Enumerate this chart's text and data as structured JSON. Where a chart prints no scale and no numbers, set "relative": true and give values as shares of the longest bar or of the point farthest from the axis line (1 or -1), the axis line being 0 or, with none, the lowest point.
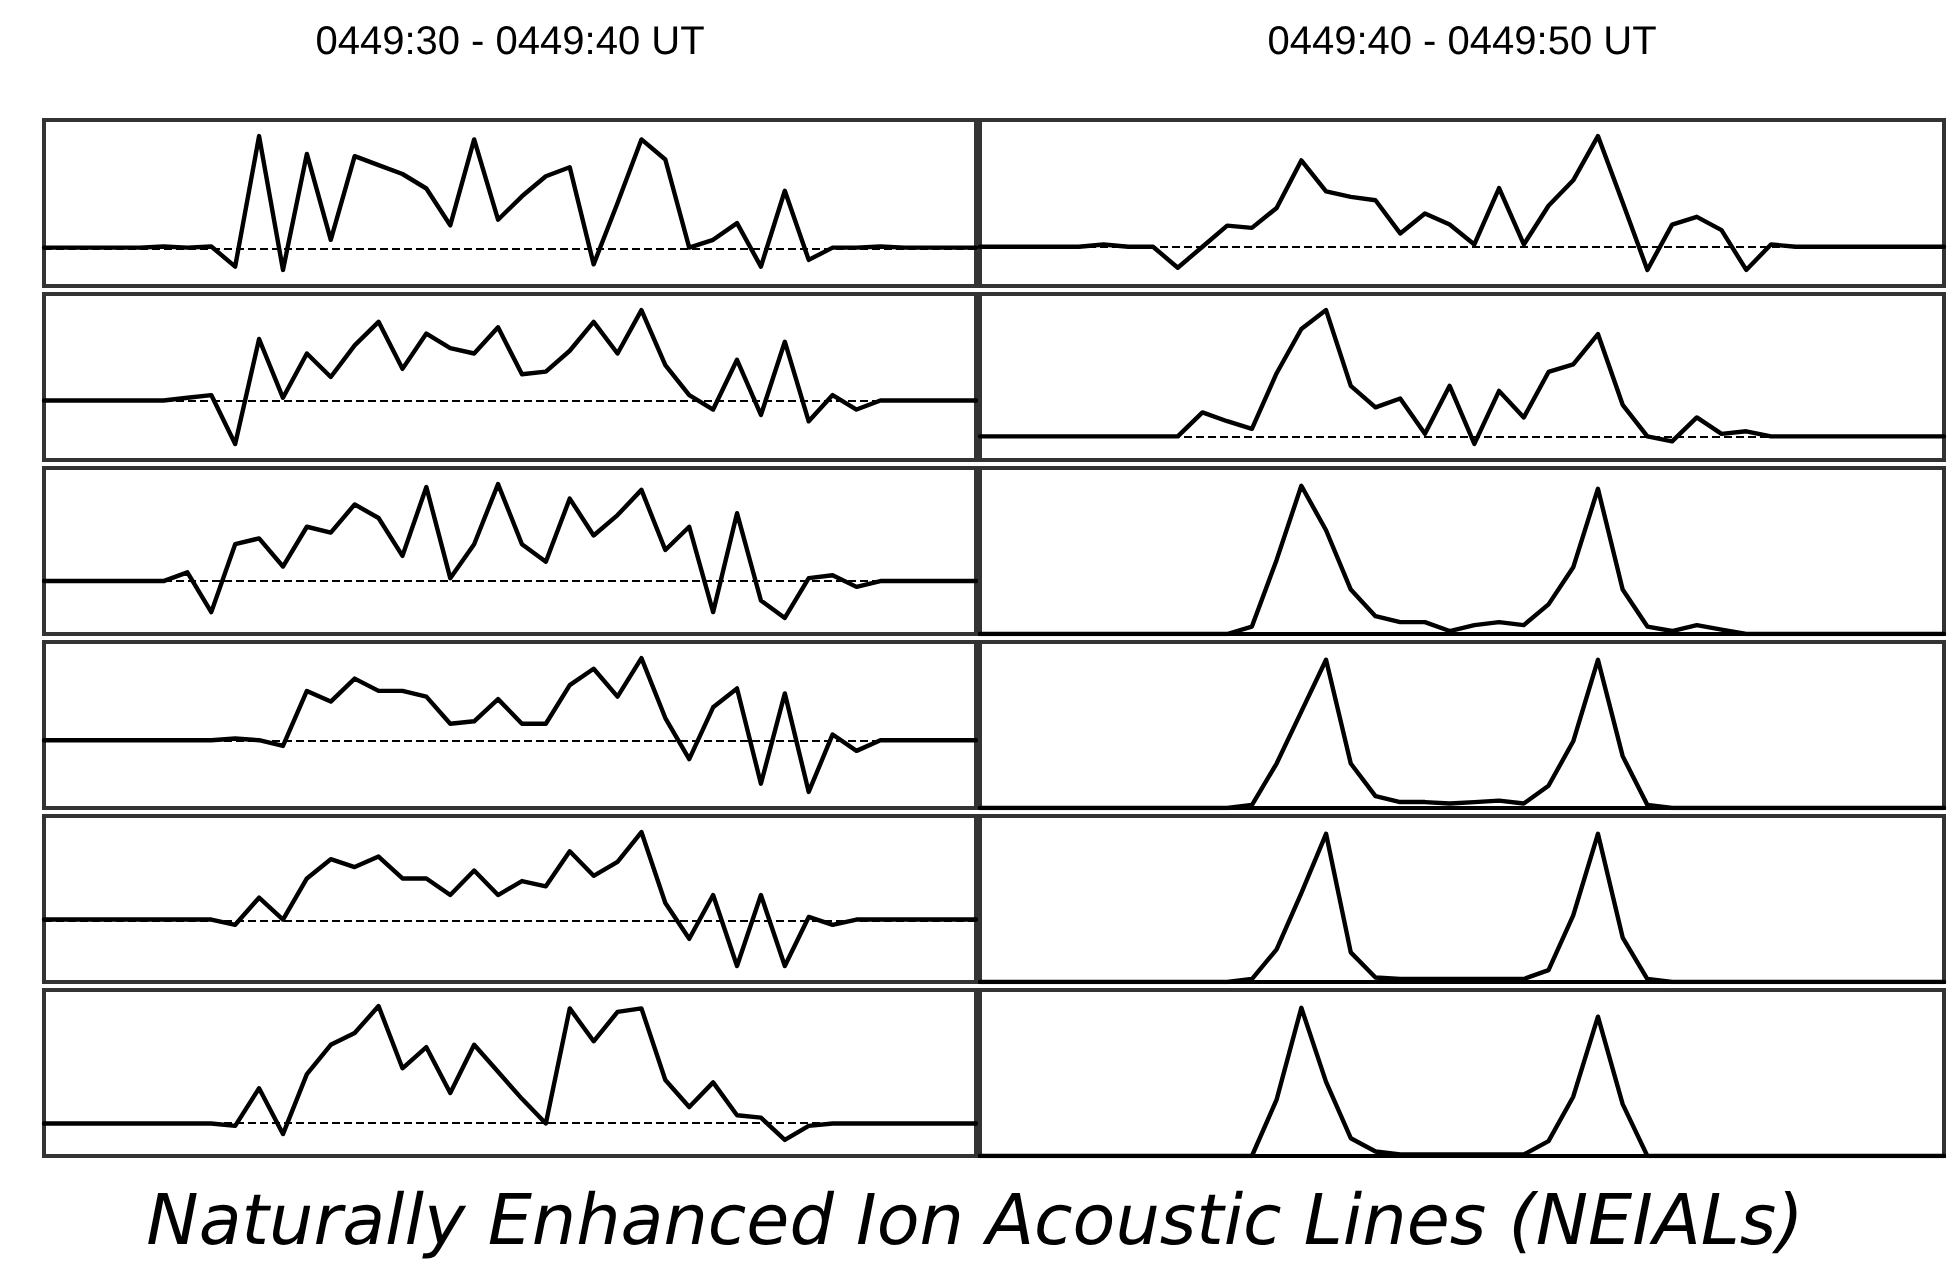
{
  "chart_data": [
    {
      "type": "line",
      "title": "0449:30 - 0449:40 UT",
      "ref_lines": [
        {
          "axis": "y",
          "value": 0,
          "line_style": "dashed"
        }
      ],
      "relative": true,
      "color": "#000000",
      "marker": "none",
      "line_style": "solid",
      "tick_labels": false,
      "categories": [
        null,
        null,
        null,
        null,
        null,
        null,
        null,
        null,
        null,
        null,
        null,
        null,
        null,
        null,
        null,
        null,
        null,
        null,
        null,
        null,
        null,
        null,
        null,
        null,
        null,
        null,
        null,
        null,
        null,
        null,
        null,
        null,
        null,
        null,
        null,
        null,
        null,
        null,
        null,
        null
      ],
      "values": [
        0,
        0,
        0,
        0,
        0,
        0.01,
        0,
        0.01,
        -0.17,
        1,
        -0.2,
        0.84,
        0.07,
        0.82,
        0.74,
        0.66,
        0.53,
        0.2,
        0.97,
        0.25,
        0.46,
        0.64,
        0.72,
        -0.15,
        0.4,
        0.97,
        0.79,
        0,
        0.07,
        0.22,
        -0.17,
        0.51,
        -0.11,
        0,
        0,
        0.01,
        0,
        0,
        0,
        0
      ]
    },
    {
      "type": "line",
      "title": "0449:40 - 0449:50 UT",
      "ref_lines": [
        {
          "axis": "y",
          "value": 0,
          "line_style": "dashed"
        }
      ],
      "relative": true,
      "color": "#000000",
      "marker": "none",
      "line_style": "solid",
      "tick_labels": false,
      "categories": [
        null,
        null,
        null,
        null,
        null,
        null,
        null,
        null,
        null,
        null,
        null,
        null,
        null,
        null,
        null,
        null,
        null,
        null,
        null,
        null,
        null,
        null,
        null,
        null,
        null,
        null,
        null,
        null,
        null,
        null,
        null,
        null,
        null,
        null,
        null,
        null,
        null,
        null,
        null,
        null
      ],
      "values": [
        0,
        0,
        0,
        0,
        0,
        0.02,
        0,
        0,
        -0.19,
        0,
        0.19,
        0.17,
        0.35,
        0.78,
        0.5,
        0.45,
        0.42,
        0.12,
        0.3,
        0.2,
        0.02,
        0.53,
        0.02,
        0.37,
        0.6,
        1,
        0.4,
        -0.21,
        0.2,
        0.27,
        0.15,
        -0.21,
        0.02,
        0,
        0,
        0,
        0,
        0,
        0,
        0
      ]
    },
    {
      "type": "line",
      "relative": true,
      "color": "#000000",
      "marker": "none",
      "line_style": "solid",
      "tick_labels": false,
      "categories": [
        null,
        null,
        null,
        null,
        null,
        null,
        null,
        null,
        null,
        null,
        null,
        null,
        null,
        null,
        null,
        null,
        null,
        null,
        null,
        null,
        null,
        null,
        null,
        null,
        null,
        null,
        null,
        null,
        null,
        null,
        null,
        null,
        null,
        null,
        null,
        null,
        null,
        null,
        null,
        null
      ],
      "ref_lines": [
        {
          "axis": "y",
          "value": 0,
          "line_style": "dashed"
        }
      ],
      "values": [
        0,
        0,
        0,
        0,
        0,
        0,
        0.03,
        0.06,
        -0.48,
        0.68,
        0.03,
        0.52,
        0.26,
        0.61,
        0.87,
        0.35,
        0.74,
        0.58,
        0.52,
        0.81,
        0.29,
        0.32,
        0.55,
        0.87,
        0.52,
        1,
        0.39,
        0.06,
        -0.1,
        0.45,
        -0.16,
        0.65,
        -0.23,
        0.06,
        -0.1,
        0,
        0,
        0,
        0,
        0
      ]
    },
    {
      "type": "line",
      "relative": true,
      "color": "#000000",
      "marker": "none",
      "line_style": "solid",
      "tick_labels": false,
      "categories": [
        null,
        null,
        null,
        null,
        null,
        null,
        null,
        null,
        null,
        null,
        null,
        null,
        null,
        null,
        null,
        null,
        null,
        null,
        null,
        null,
        null,
        null,
        null,
        null,
        null,
        null,
        null,
        null,
        null,
        null,
        null,
        null,
        null,
        null,
        null,
        null,
        null,
        null,
        null,
        null
      ],
      "ref_lines": [
        {
          "axis": "y",
          "value": 0,
          "line_style": "dashed"
        }
      ],
      "values": [
        0,
        0,
        0,
        0,
        0,
        0,
        0,
        0,
        0,
        0.19,
        0.12,
        0.06,
        0.5,
        0.85,
        1,
        0.4,
        0.23,
        0.3,
        0.02,
        0.4,
        -0.06,
        0.36,
        0.15,
        0.51,
        0.57,
        0.81,
        0.25,
        0,
        -0.04,
        0.15,
        0.02,
        0.04,
        0,
        0,
        0,
        0,
        0,
        0,
        0,
        0
      ]
    },
    {
      "type": "line",
      "relative": true,
      "color": "#000000",
      "marker": "none",
      "line_style": "solid",
      "tick_labels": false,
      "categories": [
        null,
        null,
        null,
        null,
        null,
        null,
        null,
        null,
        null,
        null,
        null,
        null,
        null,
        null,
        null,
        null,
        null,
        null,
        null,
        null,
        null,
        null,
        null,
        null,
        null,
        null,
        null,
        null,
        null,
        null,
        null,
        null,
        null,
        null,
        null,
        null,
        null,
        null,
        null,
        null
      ],
      "ref_lines": [
        {
          "axis": "y",
          "value": 0,
          "line_style": "dashed"
        }
      ],
      "values": [
        0,
        0,
        0,
        0,
        0,
        0,
        0.09,
        -0.32,
        0.38,
        0.44,
        0.15,
        0.56,
        0.5,
        0.79,
        0.65,
        0.26,
        0.97,
        0.03,
        0.38,
        1,
        0.38,
        0.2,
        0.85,
        0.47,
        0.68,
        0.94,
        0.32,
        0.56,
        -0.32,
        0.7,
        -0.2,
        -0.38,
        0.03,
        0.06,
        -0.06,
        0,
        0,
        0,
        0,
        0
      ]
    },
    {
      "type": "line",
      "relative": true,
      "color": "#000000",
      "marker": "none",
      "line_style": "solid",
      "tick_labels": false,
      "categories": [
        null,
        null,
        null,
        null,
        null,
        null,
        null,
        null,
        null,
        null,
        null,
        null,
        null,
        null,
        null,
        null,
        null,
        null,
        null,
        null,
        null,
        null,
        null,
        null,
        null,
        null,
        null,
        null,
        null,
        null,
        null,
        null,
        null,
        null,
        null,
        null,
        null,
        null,
        null,
        null
      ],
      "values": [
        0,
        0,
        0,
        0,
        0,
        0,
        0,
        0,
        0,
        0,
        0,
        0.05,
        0.5,
        1,
        0.7,
        0.3,
        0.12,
        0.08,
        0.08,
        0.02,
        0.06,
        0.08,
        0.06,
        0.2,
        0.45,
        0.98,
        0.3,
        0.05,
        0.02,
        0.06,
        0.03,
        0,
        0,
        0,
        0,
        0,
        0,
        0,
        0,
        0
      ]
    },
    {
      "type": "line",
      "relative": true,
      "color": "#000000",
      "marker": "none",
      "line_style": "solid",
      "tick_labels": false,
      "categories": [
        null,
        null,
        null,
        null,
        null,
        null,
        null,
        null,
        null,
        null,
        null,
        null,
        null,
        null,
        null,
        null,
        null,
        null,
        null,
        null,
        null,
        null,
        null,
        null,
        null,
        null,
        null,
        null,
        null,
        null,
        null,
        null,
        null,
        null,
        null,
        null,
        null,
        null,
        null,
        null
      ],
      "ref_lines": [
        {
          "axis": "y",
          "value": 0,
          "line_style": "dashed"
        }
      ],
      "values": [
        0,
        0,
        0,
        0,
        0,
        0,
        0,
        0,
        0.02,
        0,
        -0.07,
        0.6,
        0.47,
        0.75,
        0.6,
        0.6,
        0.53,
        0.2,
        0.23,
        0.5,
        0.2,
        0.2,
        0.67,
        0.87,
        0.53,
        1,
        0.27,
        -0.23,
        0.4,
        0.63,
        -0.53,
        0.57,
        -0.63,
        0.07,
        -0.13,
        0,
        0,
        0,
        0,
        0
      ]
    },
    {
      "type": "line",
      "relative": true,
      "color": "#000000",
      "marker": "none",
      "line_style": "solid",
      "tick_labels": false,
      "categories": [
        null,
        null,
        null,
        null,
        null,
        null,
        null,
        null,
        null,
        null,
        null,
        null,
        null,
        null,
        null,
        null,
        null,
        null,
        null,
        null,
        null,
        null,
        null,
        null,
        null,
        null,
        null,
        null,
        null,
        null,
        null,
        null,
        null,
        null,
        null,
        null,
        null,
        null,
        null,
        null
      ],
      "values": [
        0,
        0,
        0,
        0,
        0,
        0,
        0,
        0,
        0,
        0,
        0,
        0.02,
        0.3,
        0.65,
        1,
        0.3,
        0.08,
        0.04,
        0.04,
        0.03,
        0.04,
        0.05,
        0.03,
        0.15,
        0.45,
        1,
        0.35,
        0.02,
        0,
        0,
        0,
        0,
        0,
        0,
        0,
        0,
        0,
        0,
        0,
        0
      ]
    },
    {
      "type": "line",
      "relative": true,
      "color": "#000000",
      "marker": "none",
      "line_style": "solid",
      "tick_labels": false,
      "categories": [
        null,
        null,
        null,
        null,
        null,
        null,
        null,
        null,
        null,
        null,
        null,
        null,
        null,
        null,
        null,
        null,
        null,
        null,
        null,
        null,
        null,
        null,
        null,
        null,
        null,
        null,
        null,
        null,
        null,
        null,
        null,
        null,
        null,
        null,
        null,
        null,
        null,
        null,
        null,
        null
      ],
      "ref_lines": [
        {
          "axis": "y",
          "value": 0,
          "line_style": "dashed"
        }
      ],
      "values": [
        0,
        0,
        0,
        0,
        0,
        0,
        0,
        0,
        -0.06,
        0.25,
        0,
        0.47,
        0.69,
        0.6,
        0.72,
        0.47,
        0.47,
        0.28,
        0.56,
        0.28,
        0.44,
        0.38,
        0.78,
        0.5,
        0.66,
        1,
        0.19,
        -0.22,
        0.28,
        -0.53,
        0.28,
        -0.53,
        0.03,
        -0.06,
        0,
        0,
        0,
        0,
        0,
        0
      ]
    },
    {
      "type": "line",
      "relative": true,
      "color": "#000000",
      "marker": "none",
      "line_style": "solid",
      "tick_labels": false,
      "categories": [
        null,
        null,
        null,
        null,
        null,
        null,
        null,
        null,
        null,
        null,
        null,
        null,
        null,
        null,
        null,
        null,
        null,
        null,
        null,
        null,
        null,
        null,
        null,
        null,
        null,
        null,
        null,
        null,
        null,
        null,
        null,
        null,
        null,
        null,
        null,
        null,
        null,
        null,
        null,
        null
      ],
      "values": [
        0,
        0,
        0,
        0,
        0,
        0,
        0,
        0,
        0,
        0,
        0,
        0.02,
        0.22,
        0.6,
        1,
        0.2,
        0.03,
        0.02,
        0.02,
        0.02,
        0.02,
        0.02,
        0.02,
        0.08,
        0.45,
        1,
        0.3,
        0.02,
        0,
        0,
        0,
        0,
        0,
        0,
        0,
        0,
        0,
        0,
        0,
        0
      ]
    },
    {
      "type": "line",
      "relative": true,
      "color": "#000000",
      "marker": "none",
      "line_style": "solid",
      "tick_labels": false,
      "categories": [
        null,
        null,
        null,
        null,
        null,
        null,
        null,
        null,
        null,
        null,
        null,
        null,
        null,
        null,
        null,
        null,
        null,
        null,
        null,
        null,
        null,
        null,
        null,
        null,
        null,
        null,
        null,
        null,
        null,
        null,
        null,
        null,
        null,
        null,
        null,
        null,
        null,
        null,
        null,
        null
      ],
      "ref_lines": [
        {
          "axis": "y",
          "value": 0,
          "line_style": "dashed"
        }
      ],
      "values": [
        0,
        0,
        0,
        0,
        0,
        0,
        0,
        0,
        -0.02,
        0.3,
        -0.09,
        0.42,
        0.67,
        0.77,
        1,
        0.47,
        0.65,
        0.26,
        0.67,
        0.44,
        0.21,
        0,
        0.98,
        0.7,
        0.95,
        0.98,
        0.37,
        0.14,
        0.35,
        0.07,
        0.05,
        -0.14,
        -0.02,
        0,
        0,
        0,
        0,
        0,
        0,
        0
      ]
    },
    {
      "type": "line",
      "relative": true,
      "color": "#000000",
      "marker": "none",
      "line_style": "solid",
      "tick_labels": false,
      "annotations": [
        "Naturally Enhanced Ion Acoustic Lines (NEIALs)"
      ],
      "categories": [
        null,
        null,
        null,
        null,
        null,
        null,
        null,
        null,
        null,
        null,
        null,
        null,
        null,
        null,
        null,
        null,
        null,
        null,
        null,
        null,
        null,
        null,
        null,
        null,
        null,
        null,
        null,
        null,
        null,
        null,
        null,
        null,
        null,
        null,
        null,
        null,
        null,
        null,
        null,
        null
      ],
      "values": [
        0,
        0,
        0,
        0,
        0,
        0,
        0,
        0,
        0,
        0,
        0,
        0,
        0.38,
        1,
        0.5,
        0.12,
        0.03,
        0.01,
        0.01,
        0.01,
        0.01,
        0.01,
        0.01,
        0.1,
        0.4,
        0.94,
        0.35,
        0,
        0,
        0,
        0,
        0,
        0,
        0,
        0,
        0,
        0,
        0,
        0,
        0
      ]
    }
  ]
}
